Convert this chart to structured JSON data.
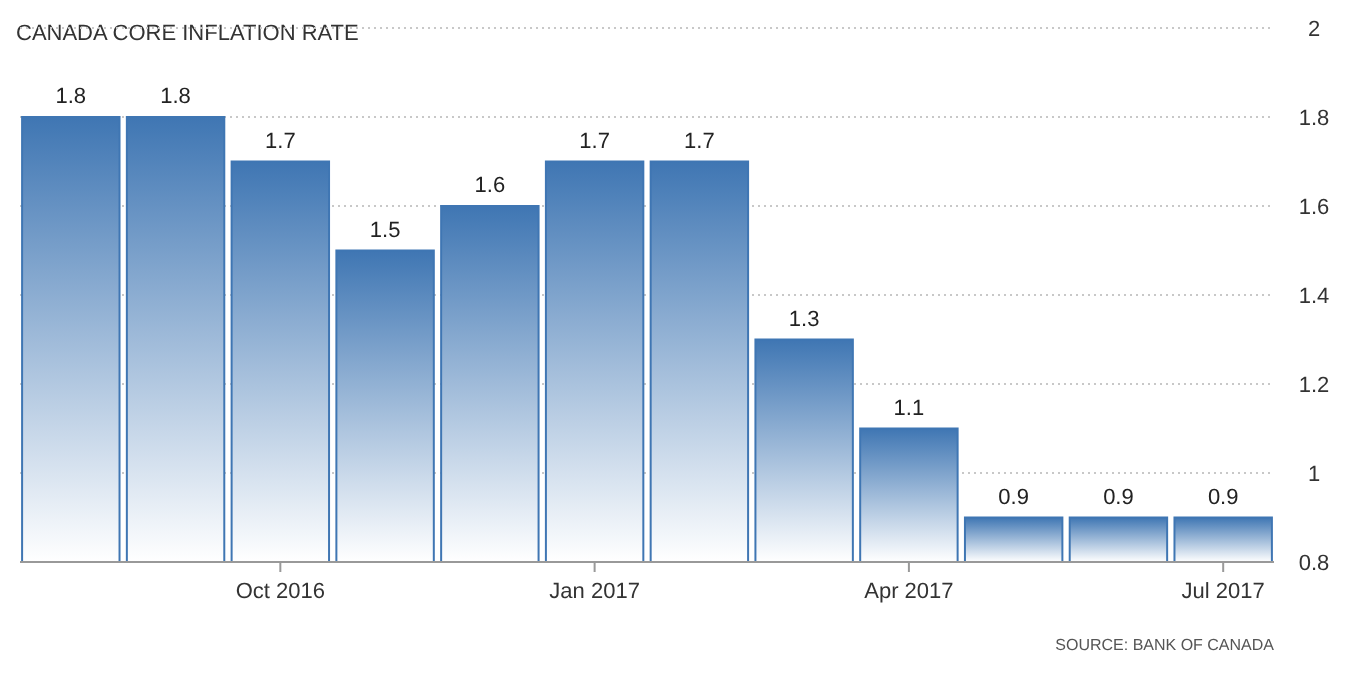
{
  "chart_data": {
    "type": "bar",
    "title": "CANADA CORE INFLATION RATE",
    "categories": [
      null,
      null,
      "Oct 2016",
      null,
      null,
      "Jan 2017",
      null,
      null,
      "Apr 2017",
      null,
      null,
      "Jul 2017"
    ],
    "values": [
      1.8,
      1.8,
      1.7,
      1.5,
      1.6,
      1.7,
      1.7,
      1.3,
      1.1,
      0.9,
      0.9,
      0.9
    ],
    "color": "#3f76b3",
    "ylim": [
      0.8,
      2
    ],
    "yticks": [
      0.8,
      1,
      1.2,
      1.4,
      1.6,
      1.8,
      2
    ],
    "grid": "y",
    "data_labels": true,
    "annotations": [
      "SOURCE: BANK OF CANADA"
    ]
  }
}
